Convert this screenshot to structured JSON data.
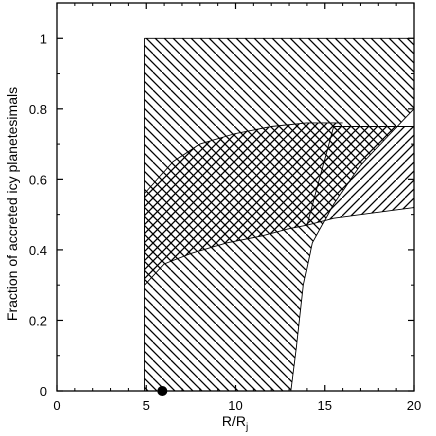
{
  "chart_data": {
    "type": "area",
    "title": "",
    "xlabel": "R/R",
    "xlabel_subscript": "j",
    "ylabel": "Fraction of accreted icy planetesimals",
    "xlim": [
      0,
      20
    ],
    "ylim": [
      0,
      1.1
    ],
    "x_ticks": [
      0,
      5,
      10,
      15,
      20
    ],
    "x_tick_labels": [
      "0",
      "5",
      "10",
      "15",
      "20"
    ],
    "y_ticks": [
      0,
      0.2,
      0.4,
      0.6,
      0.8,
      1
    ],
    "y_tick_labels": [
      "0",
      "0.2",
      "0.4",
      "0.6",
      "0.8",
      "1"
    ],
    "grid": false,
    "legend": "none",
    "regions": [
      {
        "hatch": "down-right",
        "upper": [
          [
            4.9,
            1.0
          ],
          [
            20,
            1.0
          ]
        ],
        "lower": [
          [
            4.9,
            0.0
          ],
          [
            13.1,
            0.0
          ],
          [
            13.4,
            0.12
          ],
          [
            13.8,
            0.3
          ],
          [
            14.3,
            0.42
          ],
          [
            15.5,
            0.53
          ],
          [
            17,
            0.64
          ],
          [
            18.5,
            0.72
          ],
          [
            20,
            0.8
          ]
        ]
      },
      {
        "hatch": "up-right",
        "upper": [
          [
            4.9,
            0.56
          ],
          [
            6.5,
            0.65
          ],
          [
            8,
            0.7
          ],
          [
            10,
            0.73
          ],
          [
            12,
            0.75
          ],
          [
            14,
            0.76
          ],
          [
            16,
            0.76
          ]
        ],
        "lower": [
          [
            4.9,
            0.3
          ],
          [
            6,
            0.36
          ],
          [
            7.5,
            0.39
          ],
          [
            9.5,
            0.42
          ],
          [
            11.5,
            0.44
          ],
          [
            13,
            0.46
          ],
          [
            14,
            0.47
          ]
        ]
      },
      {
        "hatch": "up-right",
        "upper": [
          [
            15.5,
            0.75
          ],
          [
            20,
            0.75
          ]
        ],
        "lower": [
          [
            14,
            0.47
          ],
          [
            15.5,
            0.49
          ],
          [
            20,
            0.52
          ]
        ]
      }
    ],
    "markers": [
      {
        "x": 5.9,
        "y": 0,
        "style": "filled-circle"
      }
    ]
  }
}
